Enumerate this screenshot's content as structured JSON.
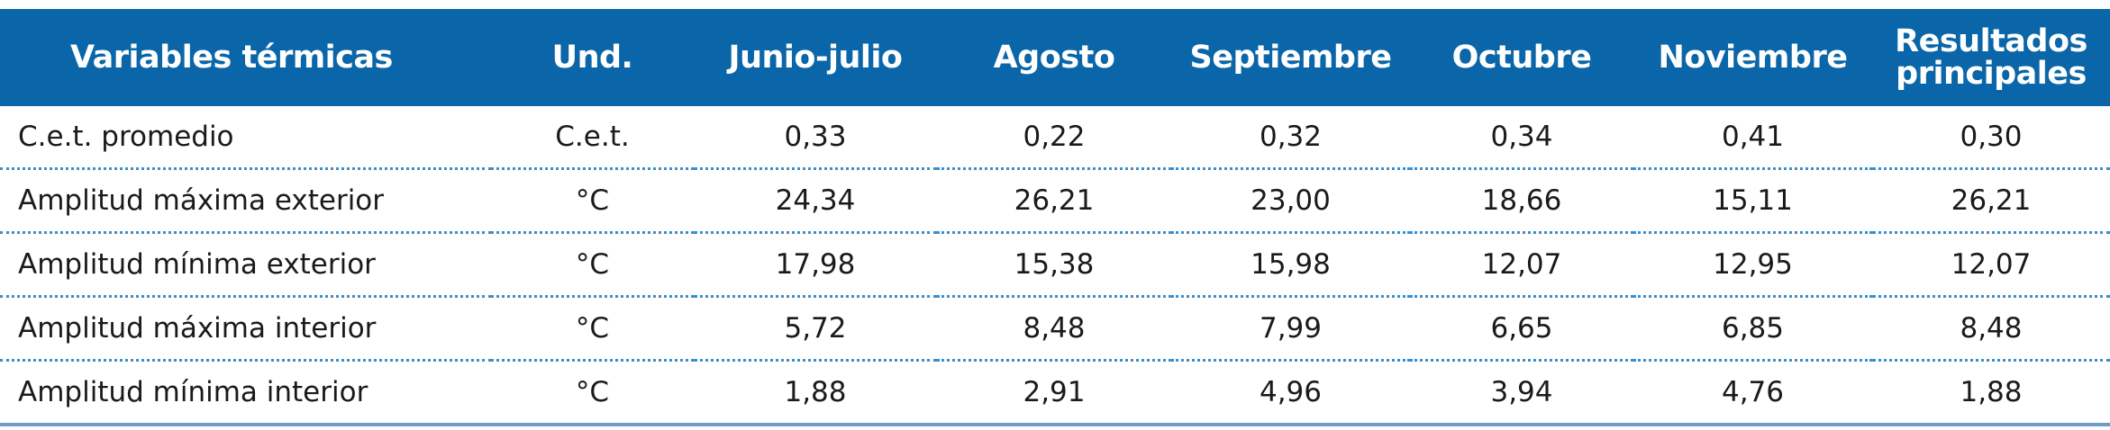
{
  "table": {
    "headers": [
      "Variables térmicas",
      "Und.",
      "Junio-julio",
      "Agosto",
      "Septiembre",
      "Octubre",
      "Noviembre",
      "Resultados principales"
    ],
    "header_last_lines": [
      "Resultados",
      "principales"
    ],
    "rows": [
      [
        "C.e.t. promedio",
        "C.e.t.",
        "0,33",
        "0,22",
        "0,32",
        "0,34",
        "0,41",
        "0,30"
      ],
      [
        "Amplitud máxima exterior",
        "°C",
        "24,34",
        "26,21",
        "23,00",
        "18,66",
        "15,11",
        "26,21"
      ],
      [
        "Amplitud mínima exterior",
        "°C",
        "17,98",
        "15,38",
        "15,98",
        "12,07",
        "12,95",
        "12,07"
      ],
      [
        "Amplitud máxima interior",
        "°C",
        "5,72",
        "8,48",
        "7,99",
        "6,65",
        "6,85",
        "8,48"
      ],
      [
        "Amplitud mínima interior",
        "°C",
        "1,88",
        "2,91",
        "4,96",
        "3,94",
        "4,76",
        "1,88"
      ]
    ]
  },
  "colors": {
    "header_bg": "#0a66a8",
    "header_text": "#ffffff",
    "row_divider": "#3a8fd0",
    "bottom_rule": "#6e9cc4"
  }
}
